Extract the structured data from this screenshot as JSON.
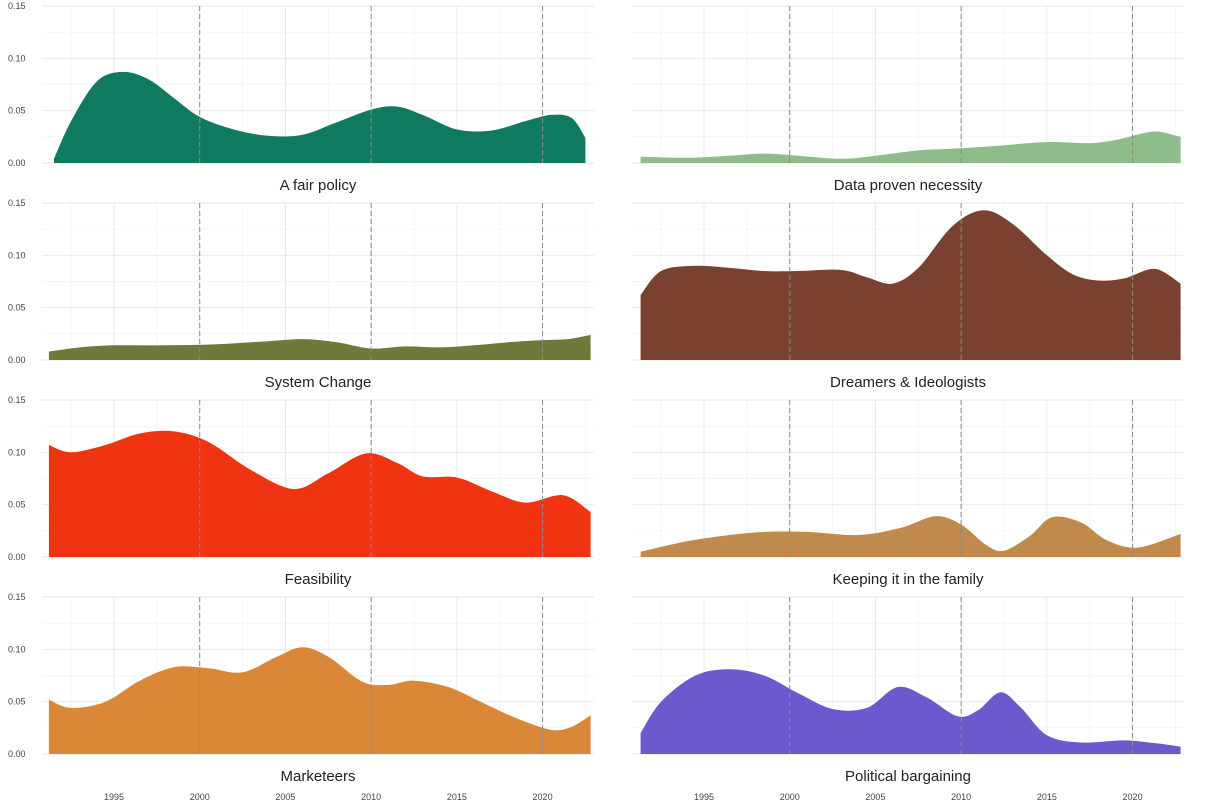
{
  "chart_data": {
    "type": "area",
    "xlim": [
      1990.8,
      2023.0
    ],
    "ylim": [
      0,
      0.15
    ],
    "y_ticks": [
      "0.00",
      "0.05",
      "0.10",
      "0.15"
    ],
    "x_ticks": [
      "1995",
      "2000",
      "2005",
      "2010",
      "2015",
      "2020"
    ],
    "reference_lines_x": [
      2000,
      2010,
      2020
    ],
    "grid": true,
    "panels": [
      {
        "title": "A fair policy",
        "color": "#0f7a60",
        "x": [
          1991.5,
          1992.5,
          1994,
          1995.5,
          1997,
          1998.5,
          2000,
          2002,
          2004,
          2006,
          2008,
          2010,
          2011.5,
          2013,
          2015,
          2017,
          2019,
          2020.5,
          2021.7,
          2022.5
        ],
        "y": [
          0.004,
          0.04,
          0.078,
          0.087,
          0.08,
          0.062,
          0.044,
          0.032,
          0.026,
          0.027,
          0.039,
          0.051,
          0.054,
          0.046,
          0.032,
          0.031,
          0.04,
          0.046,
          0.043,
          0.024
        ]
      },
      {
        "title": "Data proven necessity",
        "color": "#8fbc8b",
        "x": [
          1991.3,
          1994,
          1996.5,
          1998.5,
          2000.5,
          2003,
          2005,
          2007.5,
          2010,
          2012.5,
          2015,
          2017.5,
          2019,
          2020.5,
          2021.5,
          2022.8
        ],
        "y": [
          0.006,
          0.005,
          0.007,
          0.009,
          0.007,
          0.004,
          0.007,
          0.012,
          0.014,
          0.017,
          0.02,
          0.019,
          0.022,
          0.028,
          0.03,
          0.025
        ]
      },
      {
        "title": "System Change",
        "color": "#6e7a3a",
        "x": [
          1991.2,
          1993,
          1995,
          1998,
          2001,
          2004,
          2006,
          2008,
          2010,
          2012,
          2014,
          2016,
          2018,
          2020,
          2021.5,
          2022.8
        ],
        "y": [
          0.008,
          0.012,
          0.014,
          0.014,
          0.015,
          0.018,
          0.02,
          0.017,
          0.011,
          0.013,
          0.012,
          0.014,
          0.017,
          0.019,
          0.02,
          0.024
        ]
      },
      {
        "title": "Dreamers & Ideologists",
        "color": "#7a4030",
        "x": [
          1991.3,
          1992.5,
          1994.5,
          1996.5,
          1998.5,
          2000.5,
          2003,
          2004.5,
          2006,
          2007.5,
          2009.5,
          2011.3,
          2013,
          2015,
          2016.5,
          2018,
          2019.5,
          2021.3,
          2022.8
        ],
        "y": [
          0.062,
          0.085,
          0.09,
          0.088,
          0.085,
          0.085,
          0.086,
          0.079,
          0.073,
          0.088,
          0.128,
          0.143,
          0.13,
          0.1,
          0.082,
          0.076,
          0.078,
          0.087,
          0.073
        ]
      },
      {
        "title": "Feasibility",
        "color": "#f03412",
        "x": [
          1991.2,
          1992.5,
          1994.5,
          1996.5,
          1998.5,
          2000.5,
          2003,
          2005.5,
          2007.5,
          2009.7,
          2011.5,
          2013,
          2015,
          2017,
          2019,
          2021.2,
          2022.8
        ],
        "y": [
          0.107,
          0.1,
          0.107,
          0.118,
          0.12,
          0.11,
          0.083,
          0.065,
          0.08,
          0.099,
          0.09,
          0.077,
          0.076,
          0.063,
          0.052,
          0.059,
          0.043
        ]
      },
      {
        "title": "Keeping it in the family",
        "color": "#c08a4c",
        "x": [
          1991.3,
          1994,
          1996.5,
          1998.5,
          2001,
          2004,
          2006.5,
          2008.5,
          2010,
          2011.5,
          2012.5,
          2014,
          2015.3,
          2017,
          2018.5,
          2020.3,
          2022.8
        ],
        "y": [
          0.005,
          0.015,
          0.021,
          0.024,
          0.024,
          0.021,
          0.028,
          0.039,
          0.031,
          0.011,
          0.006,
          0.02,
          0.038,
          0.033,
          0.016,
          0.009,
          0.022
        ]
      },
      {
        "title": "Marketeers",
        "color": "#da8838",
        "x": [
          1991.2,
          1992.5,
          1994.5,
          1996.5,
          1998.5,
          2000.5,
          2002.5,
          2004.5,
          2006,
          2007.5,
          2009.5,
          2011,
          2012.5,
          2014.5,
          2016.5,
          2018.5,
          2020.5,
          2021.7,
          2022.8
        ],
        "y": [
          0.052,
          0.044,
          0.05,
          0.07,
          0.083,
          0.082,
          0.078,
          0.093,
          0.102,
          0.093,
          0.069,
          0.066,
          0.07,
          0.064,
          0.049,
          0.034,
          0.023,
          0.026,
          0.037
        ]
      },
      {
        "title": "Political bargaining",
        "color": "#6a5acd",
        "x": [
          1991.3,
          1992.5,
          1994.5,
          1996.5,
          1998.5,
          2000.5,
          2002.5,
          2004.5,
          2006.3,
          2008,
          2009.8,
          2011,
          2012.3,
          2013.5,
          2015,
          2017,
          2019.5,
          2021.5,
          2022.8
        ],
        "y": [
          0.02,
          0.05,
          0.075,
          0.081,
          0.075,
          0.058,
          0.043,
          0.044,
          0.064,
          0.054,
          0.036,
          0.042,
          0.059,
          0.044,
          0.018,
          0.011,
          0.013,
          0.01,
          0.007
        ]
      }
    ]
  }
}
